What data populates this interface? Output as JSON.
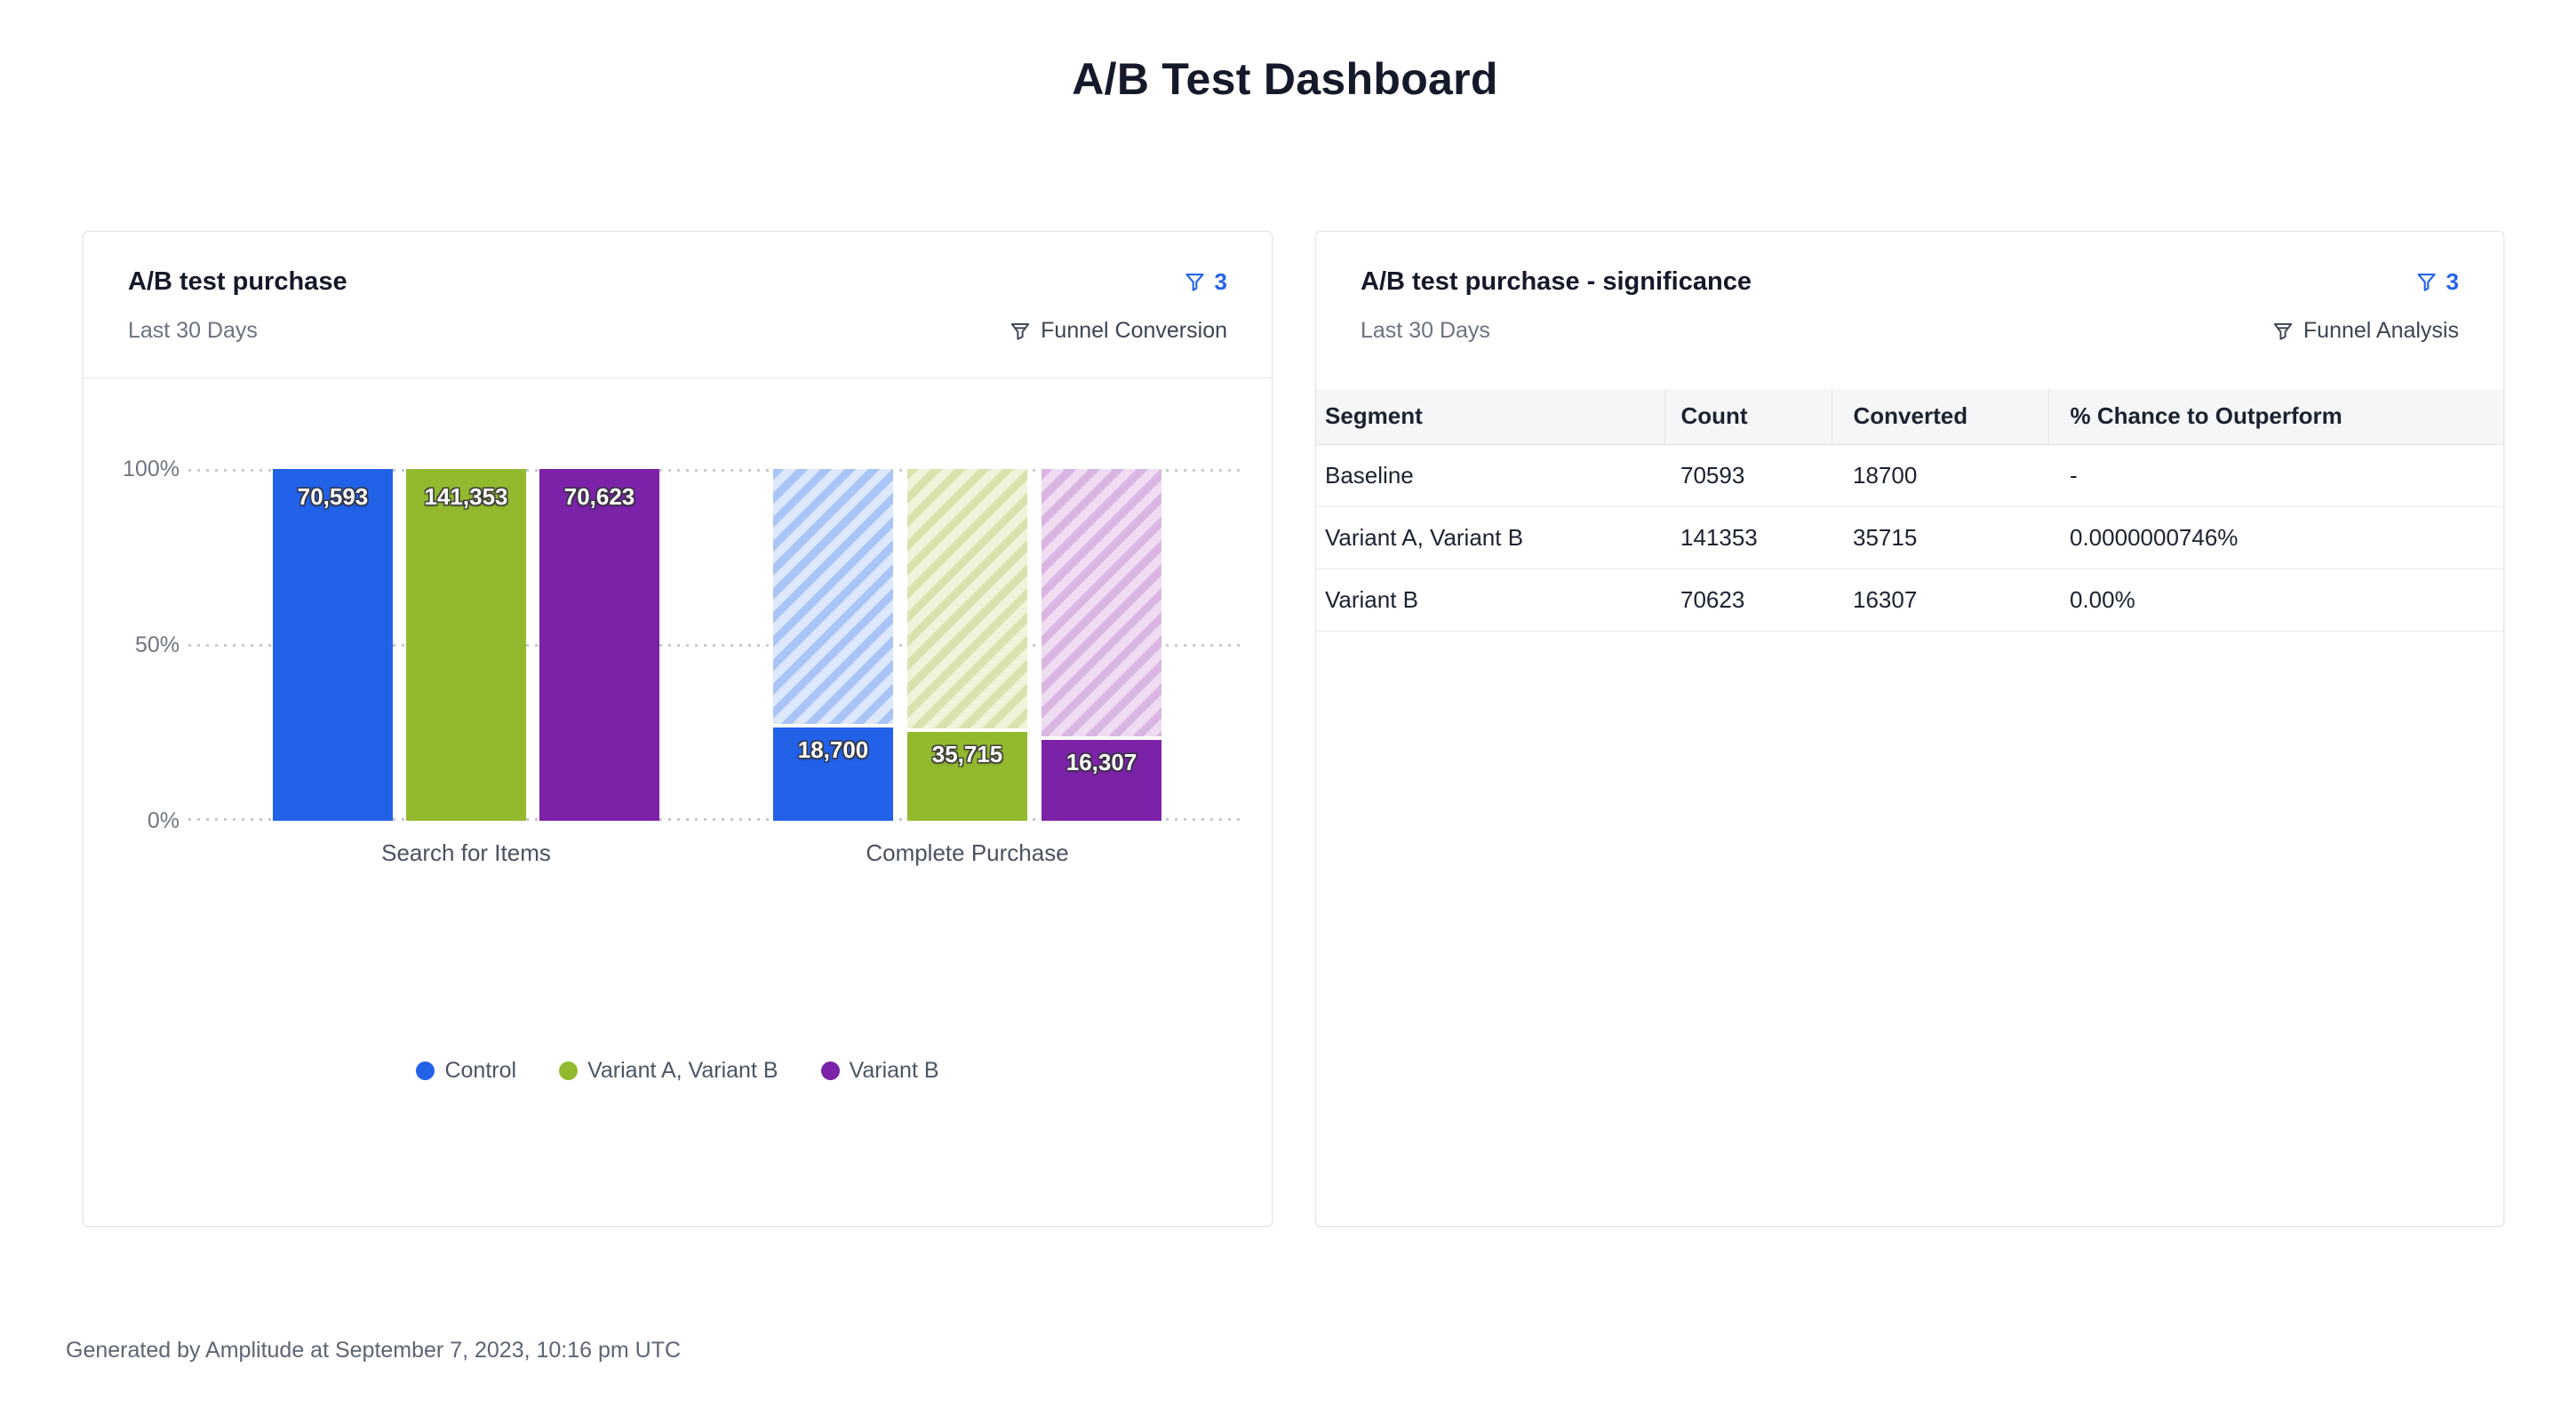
{
  "page": {
    "title": "A/B Test Dashboard",
    "footer": "Generated by Amplitude at September 7, 2023, 10:16 pm UTC"
  },
  "colors": {
    "accent_blue": "#2563eb",
    "control": "#2262e9",
    "variant_a_b": "#93ba2f",
    "variant_b": "#7c22a8"
  },
  "left_card": {
    "title": "A/B test purchase",
    "date_range": "Last 30 Days",
    "filter_count": "3",
    "view_label": "Funnel Conversion"
  },
  "right_card": {
    "title": "A/B test purchase - significance",
    "date_range": "Last 30 Days",
    "filter_count": "3",
    "view_label": "Funnel Analysis"
  },
  "chart_data": [
    {
      "type": "bar",
      "title": "A/B test purchase",
      "subtitle": "Funnel Conversion",
      "categories": [
        "Search for Items",
        "Complete Purchase"
      ],
      "series": [
        {
          "name": "Control",
          "color": "#2262e9",
          "hatch_bg": "#dde8fc",
          "hatch_stripe": "#a9c4f6",
          "values": [
            70593,
            18700
          ],
          "labels": [
            "70,593",
            "18,700"
          ]
        },
        {
          "name": "Variant A, Variant B",
          "color": "#93ba2f",
          "hatch_bg": "#eff3da",
          "hatch_stripe": "#d9e2ac",
          "values": [
            141353,
            35715
          ],
          "labels": [
            "141,353",
            "35,715"
          ]
        },
        {
          "name": "Variant B",
          "color": "#7c22a8",
          "hatch_bg": "#efdcf3",
          "hatch_stripe": "#d9b6e2",
          "values": [
            70623,
            16307
          ],
          "labels": [
            "70,623",
            "16,307"
          ]
        }
      ],
      "y_axis": {
        "tick_labels": [
          "100%",
          "50%",
          "0%"
        ],
        "min": 0,
        "max": 100,
        "unit": "% of first funnel step"
      },
      "grid": "dotted horizontal lines at 0%, 50%, 100%",
      "legend_position": "bottom",
      "note": "Complete Purchase bars show solid converted portion over a hatched 100% baseline"
    },
    {
      "type": "table",
      "title": "A/B test purchase - significance",
      "columns": [
        "Segment",
        "Count",
        "Converted",
        "% Chance to Outperform"
      ],
      "rows": [
        [
          "Baseline",
          "70593",
          "18700",
          "-"
        ],
        [
          "Variant A, Variant B",
          "141353",
          "35715",
          "0.0000000746%"
        ],
        [
          "Variant B",
          "70623",
          "16307",
          "0.00%"
        ]
      ]
    }
  ]
}
